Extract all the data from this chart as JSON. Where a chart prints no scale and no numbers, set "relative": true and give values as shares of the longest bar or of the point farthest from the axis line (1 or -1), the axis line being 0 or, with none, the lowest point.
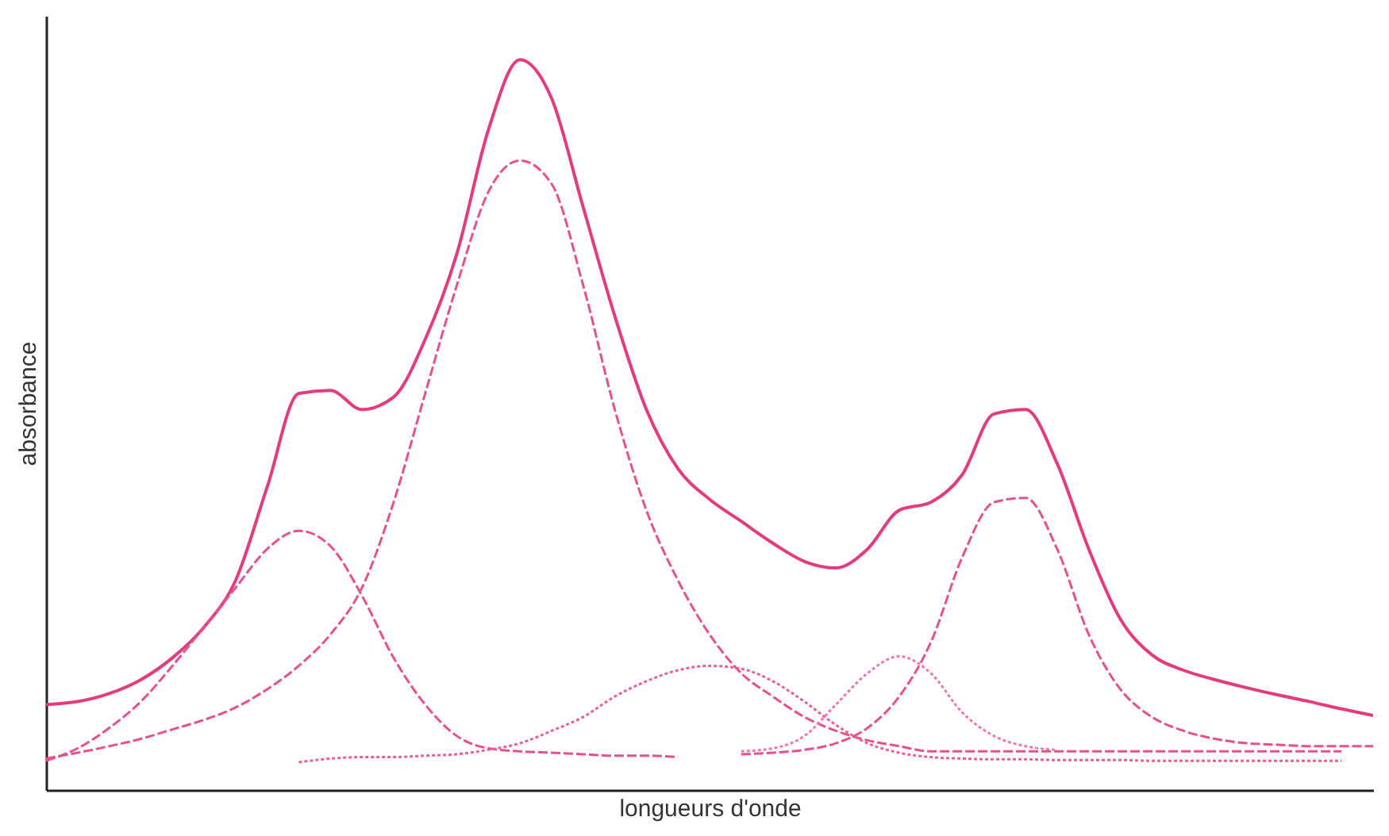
{
  "chart_data": {
    "type": "line",
    "relative": true,
    "xlabel": "longueurs d'onde",
    "ylabel": "absorbance",
    "grid": false,
    "marker": "none",
    "categories": [
      null,
      null,
      null,
      null,
      null,
      null,
      null,
      null,
      null,
      null,
      null,
      null,
      null,
      null,
      null,
      null,
      null,
      null,
      null,
      null,
      null,
      null,
      null,
      null,
      null,
      null,
      null,
      null,
      null,
      null,
      null,
      null,
      null,
      null,
      null,
      null,
      null,
      null,
      null,
      null,
      null,
      null,
      null
    ],
    "series": [
      {
        "color": "#e23c7e",
        "line_style": "solid",
        "values": [
          0.117,
          0.121,
          0.132,
          0.151,
          0.181,
          0.223,
          0.287,
          0.415,
          0.543,
          0.547,
          0.521,
          0.538,
          0.617,
          0.734,
          0.904,
          1.0,
          0.947,
          0.798,
          0.649,
          0.521,
          0.44,
          0.398,
          0.368,
          0.338,
          0.313,
          0.304,
          0.33,
          0.383,
          0.394,
          0.432,
          0.515,
          0.521,
          0.447,
          0.33,
          0.234,
          0.185,
          0.164,
          0.151,
          0.14,
          0.13,
          0.121,
          0.111,
          0.102
        ]
      },
      {
        "color": "#e6508e",
        "line_style": "dashed",
        "values": [
          0.043,
          0.051,
          0.06,
          0.07,
          0.083,
          0.096,
          0.113,
          0.138,
          0.17,
          0.213,
          0.277,
          0.394,
          0.543,
          0.691,
          0.819,
          0.862,
          0.83,
          0.691,
          0.521,
          0.383,
          0.287,
          0.213,
          0.16,
          0.128,
          0.1,
          0.081,
          0.068,
          0.06,
          0.053,
          0.053,
          0.053,
          0.053,
          0.053,
          0.053,
          0.053,
          0.053,
          0.053,
          0.053,
          0.053,
          0.053,
          0.053,
          0.053,
          null
        ]
      },
      {
        "color": "#e6508e",
        "line_style": "dashed",
        "values": [
          0.04,
          0.057,
          0.085,
          0.121,
          0.17,
          0.223,
          0.277,
          0.33,
          0.355,
          0.334,
          0.266,
          0.181,
          0.117,
          0.074,
          0.057,
          0.053,
          0.051,
          0.049,
          0.047,
          0.047,
          0.045,
          null,
          null,
          null,
          null,
          null,
          null,
          null,
          null,
          null,
          null,
          null,
          null,
          null,
          null,
          null,
          null,
          null,
          null,
          null,
          null,
          null,
          null
        ]
      },
      {
        "color": "#e8609a",
        "line_style": "dotted",
        "values": [
          null,
          null,
          null,
          null,
          null,
          null,
          null,
          null,
          0.038,
          0.043,
          0.045,
          0.045,
          0.047,
          0.049,
          0.055,
          0.064,
          0.081,
          0.1,
          0.128,
          0.149,
          0.164,
          0.17,
          0.166,
          0.149,
          0.121,
          0.089,
          0.064,
          0.051,
          0.045,
          0.043,
          0.042,
          0.042,
          0.041,
          0.041,
          0.041,
          0.04,
          0.04,
          0.04,
          0.04,
          0.04,
          0.04,
          0.04,
          null
        ]
      },
      {
        "color": "#ec7aae",
        "line_style": "dotted",
        "values": [
          null,
          null,
          null,
          null,
          null,
          null,
          null,
          null,
          null,
          null,
          null,
          null,
          null,
          null,
          null,
          null,
          null,
          null,
          null,
          null,
          null,
          null,
          0.053,
          0.057,
          0.074,
          0.117,
          0.16,
          0.183,
          0.16,
          0.106,
          0.074,
          0.06,
          0.055,
          null,
          null,
          null,
          null,
          null,
          null,
          null,
          null,
          null,
          null
        ]
      },
      {
        "color": "#e6508e",
        "line_style": "dashed",
        "values": [
          null,
          null,
          null,
          null,
          null,
          null,
          null,
          null,
          null,
          null,
          null,
          null,
          null,
          null,
          null,
          null,
          null,
          null,
          null,
          null,
          null,
          null,
          0.049,
          0.051,
          0.055,
          0.064,
          0.085,
          0.128,
          0.202,
          0.319,
          0.394,
          0.4,
          0.33,
          0.213,
          0.138,
          0.1,
          0.081,
          0.07,
          0.064,
          0.062,
          0.06,
          0.06,
          0.06
        ]
      }
    ]
  }
}
